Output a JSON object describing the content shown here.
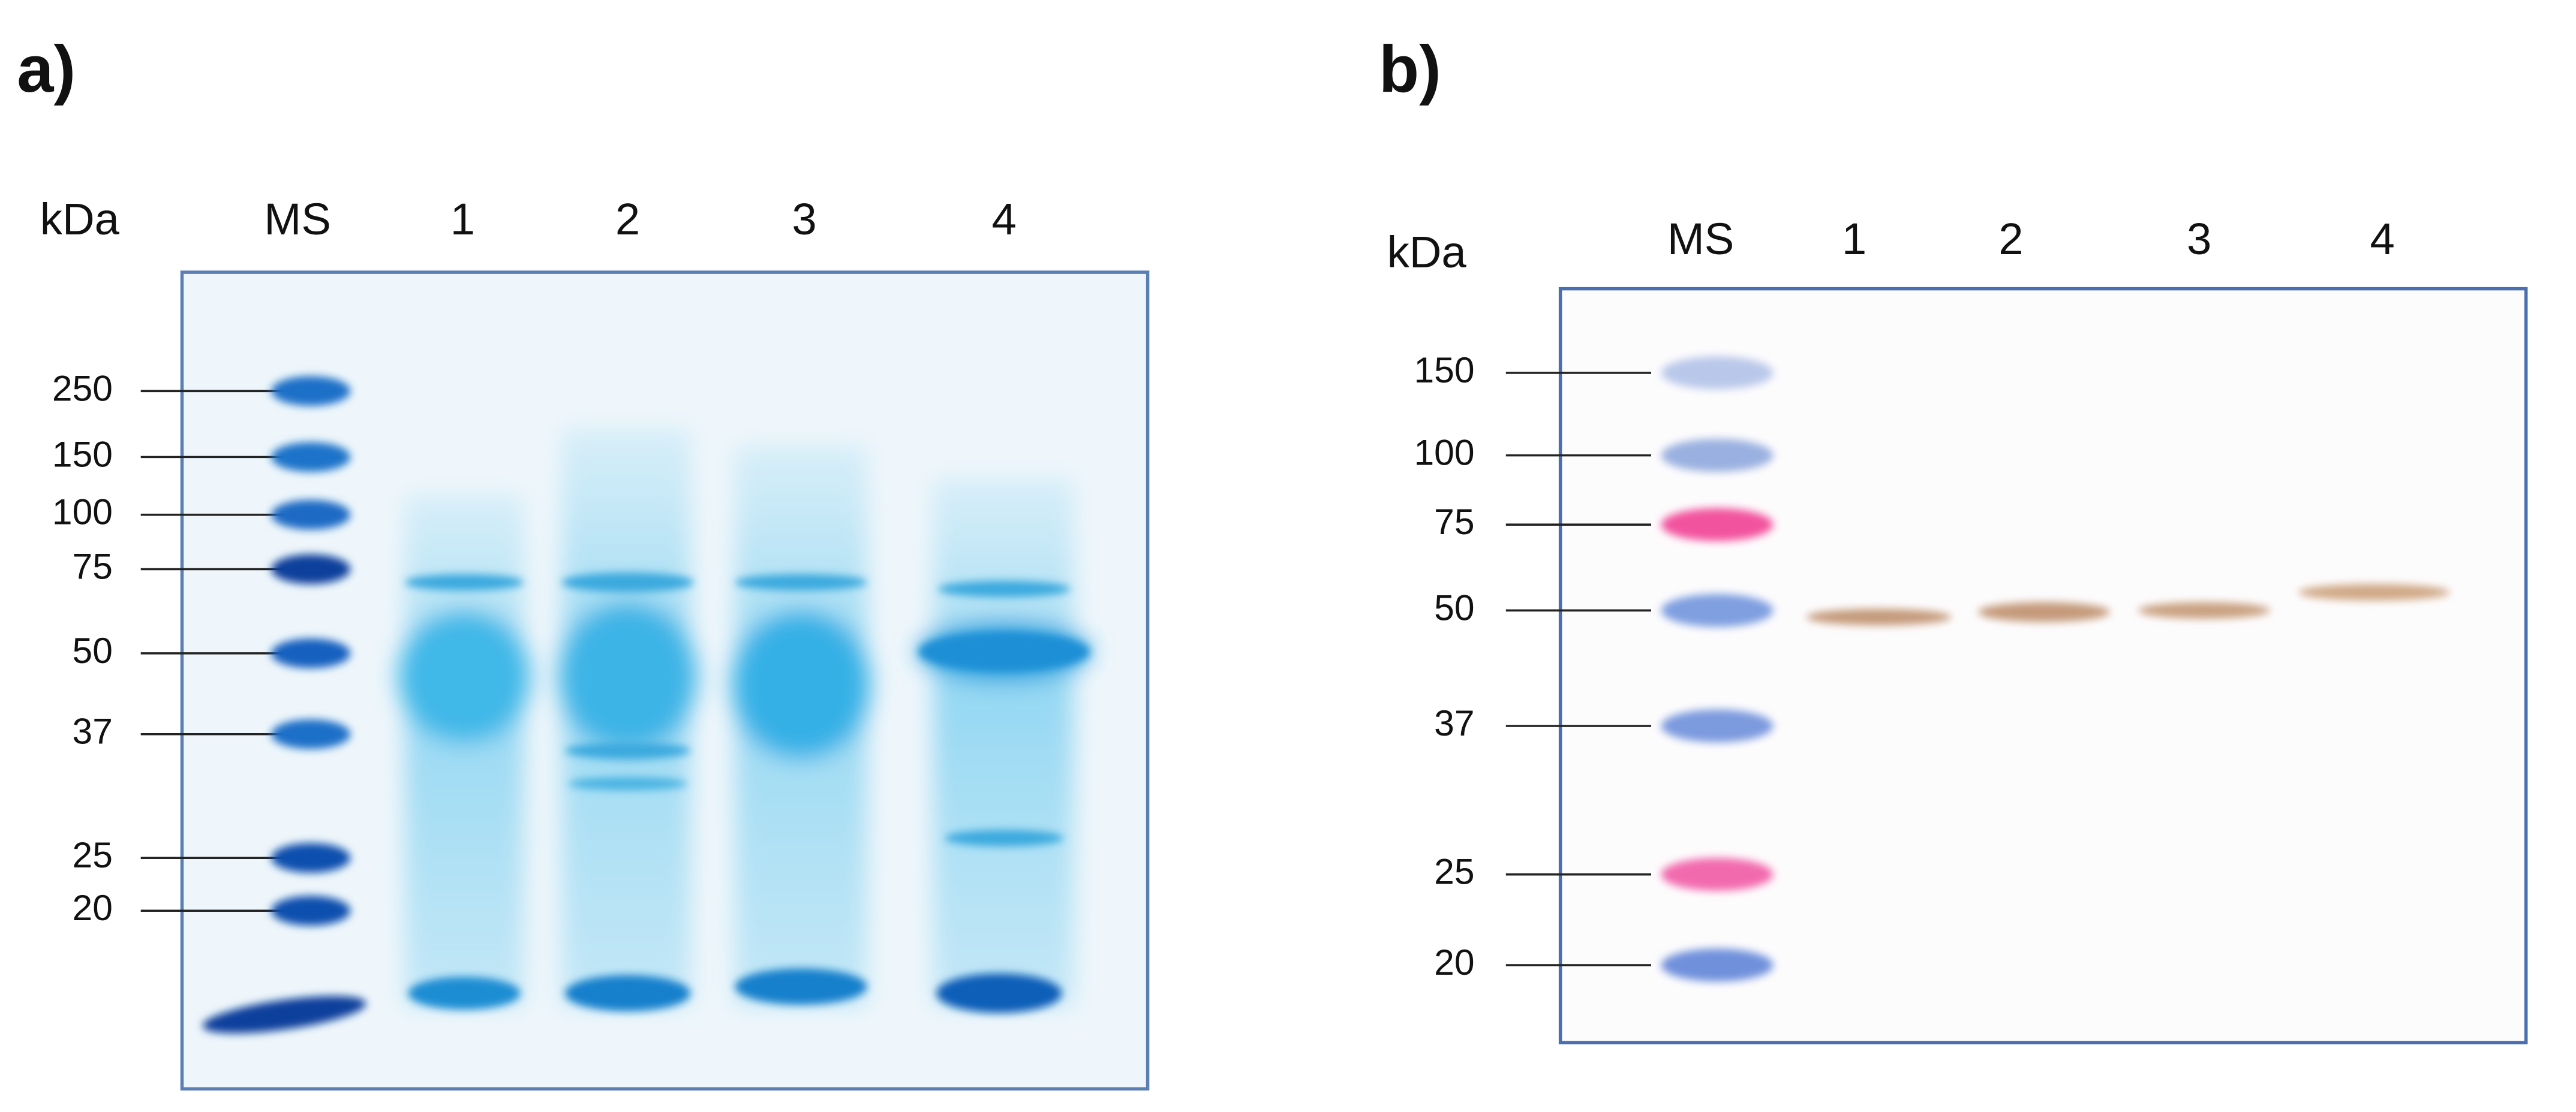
{
  "panels": [
    {
      "label": "a)",
      "unit": "kDa",
      "lanes": [
        "MS",
        "1",
        "2",
        "3",
        "4"
      ],
      "markers": [
        250,
        150,
        100,
        75,
        50,
        37,
        25,
        20
      ]
    },
    {
      "label": "b)",
      "unit": "kDa",
      "lanes": [
        "MS",
        "1",
        "2",
        "3",
        "4"
      ],
      "markers": [
        150,
        100,
        75,
        50,
        37,
        25,
        20
      ]
    }
  ]
}
